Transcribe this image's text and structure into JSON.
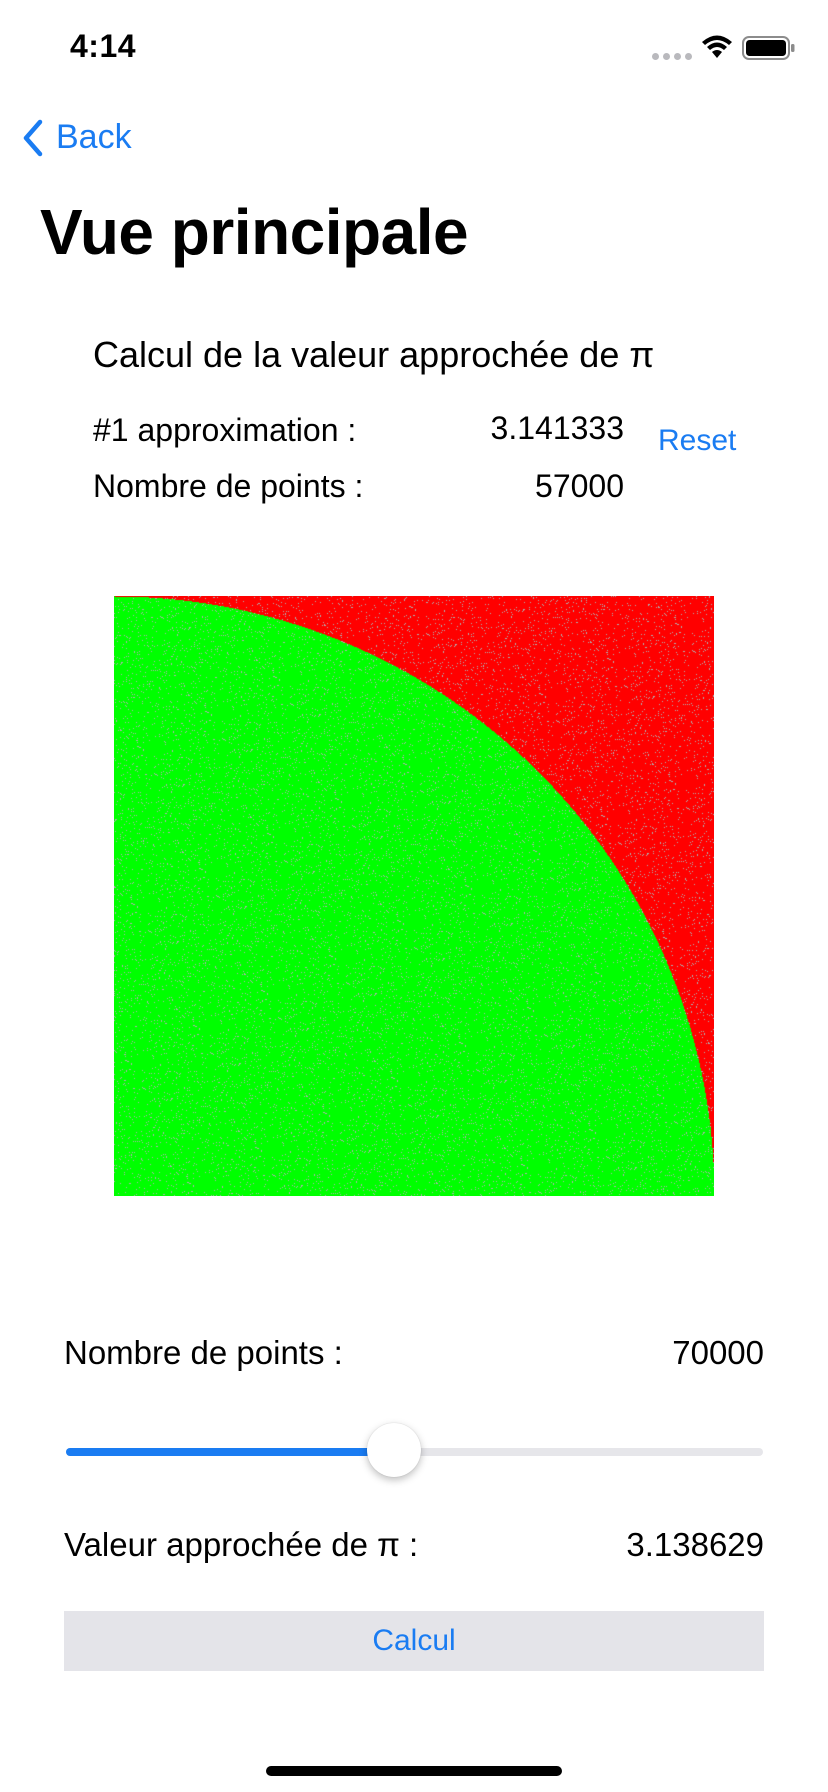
{
  "status_bar": {
    "time": "4:14"
  },
  "nav": {
    "back_label": "Back",
    "title": "Vue principale"
  },
  "header": {
    "section_title": "Calcul de la valeur approchée de π",
    "approx_label": "#1 approximation :",
    "approx_value": "3.141333",
    "points_label": "Nombre de points :",
    "points_value": "57000",
    "reset_label": "Reset"
  },
  "chart_data": {
    "type": "scatter",
    "description_free": true,
    "xlim": [
      0,
      1
    ],
    "ylim": [
      0,
      1
    ],
    "series": [
      {
        "region": "inside quarter circle (x²+y²≤1)",
        "color": "#00ff00"
      },
      {
        "region": "outside quarter circle",
        "color": "#ff0000"
      }
    ],
    "points_count": 57000
  },
  "controls": {
    "count_label": "Nombre de points :",
    "count_value": "70000",
    "slider_fraction": 0.47,
    "result_label": "Valeur approchée de π :",
    "result_value": "3.138629",
    "calc_button_label": "Calcul"
  },
  "colors": {
    "accent": "#1a7cf2",
    "inside": "#00ff00",
    "outside": "#ff0000",
    "noise": "#b0b0b0"
  },
  "icons": [
    "back-chevron-icon",
    "cellular-icon",
    "wifi-icon",
    "battery-icon"
  ]
}
